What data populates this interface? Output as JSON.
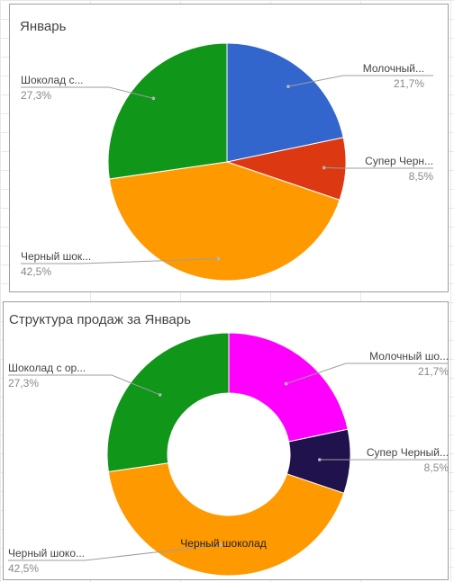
{
  "chart_data": [
    {
      "type": "pie",
      "title": "Январь",
      "colors": [
        "#3366cc",
        "#dc3912",
        "#ff9900",
        "#109618"
      ],
      "slices": [
        {
          "label": "Молочный...",
          "value": 21.7,
          "pct_label": "21,7%"
        },
        {
          "label": "Супер Черн...",
          "value": 8.5,
          "pct_label": "8,5%"
        },
        {
          "label": "Черный шок...",
          "value": 42.5,
          "pct_label": "42,5%"
        },
        {
          "label": "Шоколад с...",
          "value": 27.3,
          "pct_label": "27,3%"
        }
      ]
    },
    {
      "type": "pie",
      "donut": true,
      "title": "Структура продаж за Январь",
      "colors": [
        "#ff00ff",
        "#20124d",
        "#ff9900",
        "#109618"
      ],
      "slices": [
        {
          "label": "Молочный шо...",
          "value": 21.7,
          "pct_label": "21,7%"
        },
        {
          "label": "Супер Черный...",
          "value": 8.5,
          "pct_label": "8,5%"
        },
        {
          "label": "Черный шоко...",
          "value": 42.5,
          "pct_label": "42,5%"
        },
        {
          "label": "Шоколад с ор...",
          "value": 27.3,
          "pct_label": "27,3%"
        }
      ],
      "inner_label": "Черный шоколад"
    }
  ]
}
